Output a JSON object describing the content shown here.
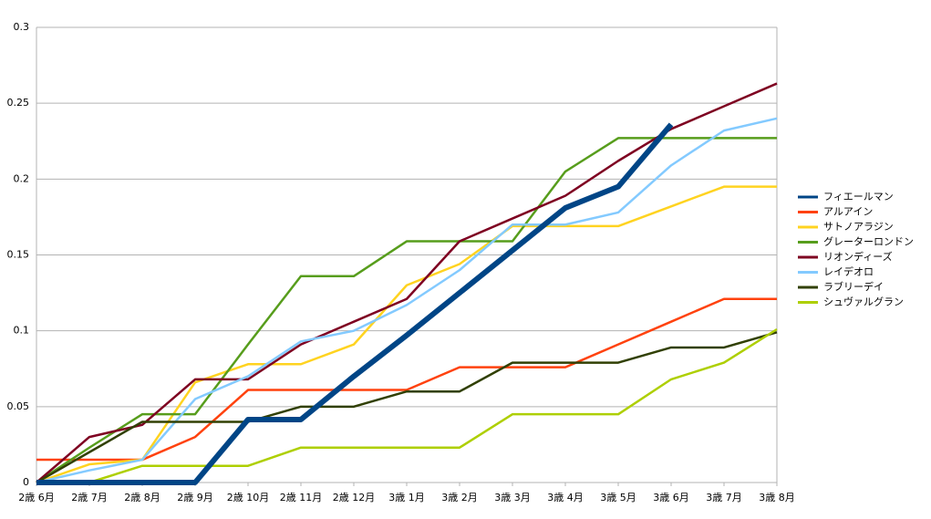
{
  "chart_data": {
    "type": "line",
    "categories": [
      "2歳 6月",
      "2歳 7月",
      "2歳 8月",
      "2歳 9月",
      "2歳 10月",
      "2歳 11月",
      "2歳 12月",
      "3歳 1月",
      "3歳 2月",
      "3歳 3月",
      "3歳 4月",
      "3歳 5月",
      "3歳 6月",
      "3歳 7月",
      "3歳 8月"
    ],
    "series": [
      {
        "name": "フィエールマン",
        "color": "#004586",
        "values": [
          0,
          0,
          0,
          0,
          0.0415,
          0.0415,
          0.07,
          0.097,
          0.125,
          0.153,
          0.181,
          0.195,
          0.236,
          null,
          null
        ]
      },
      {
        "name": "アルアイン",
        "color": "#ff420e",
        "values": [
          0.015,
          0.015,
          0.015,
          0.03,
          0.061,
          0.061,
          0.061,
          0.061,
          0.076,
          0.076,
          0.076,
          0.091,
          0.106,
          0.121,
          0.121
        ]
      },
      {
        "name": "サトノアラジン",
        "color": "#ffd320",
        "values": [
          0,
          0.012,
          0.015,
          0.066,
          0.078,
          0.078,
          0.091,
          0.13,
          0.144,
          0.169,
          0.169,
          0.169,
          0.182,
          0.195,
          0.195
        ]
      },
      {
        "name": "グレーターロンドン",
        "color": "#579d1c",
        "values": [
          0,
          0.023,
          0.045,
          0.045,
          0.091,
          0.136,
          0.136,
          0.159,
          0.159,
          0.159,
          0.205,
          0.227,
          0.227,
          0.227,
          0.227
        ]
      },
      {
        "name": "リオンディーズ",
        "color": "#7e0021",
        "values": [
          0,
          0.03,
          0.038,
          0.068,
          0.068,
          0.091,
          0.106,
          0.121,
          0.159,
          0.174,
          0.189,
          0.212,
          0.233,
          0.248,
          0.263
        ]
      },
      {
        "name": "レイデオロ",
        "color": "#83caff",
        "values": [
          0,
          0.008,
          0.015,
          0.055,
          0.07,
          0.093,
          0.1,
          0.117,
          0.14,
          0.17,
          0.17,
          0.178,
          0.209,
          0.232,
          0.24
        ]
      },
      {
        "name": "ラブリーデイ",
        "color": "#314004",
        "values": [
          0,
          0.02,
          0.04,
          0.04,
          0.04,
          0.05,
          0.05,
          0.06,
          0.06,
          0.079,
          0.079,
          0.079,
          0.089,
          0.089,
          0.099
        ]
      },
      {
        "name": "シュヴァルグラン",
        "color": "#aecf00",
        "values": [
          0,
          0,
          0.011,
          0.011,
          0.011,
          0.023,
          0.023,
          0.023,
          0.023,
          0.045,
          0.045,
          0.045,
          0.068,
          0.079,
          0.101
        ]
      }
    ],
    "ylim": [
      0,
      0.3
    ],
    "yticks": [
      0,
      0.05,
      0.1,
      0.15,
      0.2,
      0.25,
      0.3
    ],
    "grid": true,
    "legend": "right"
  }
}
